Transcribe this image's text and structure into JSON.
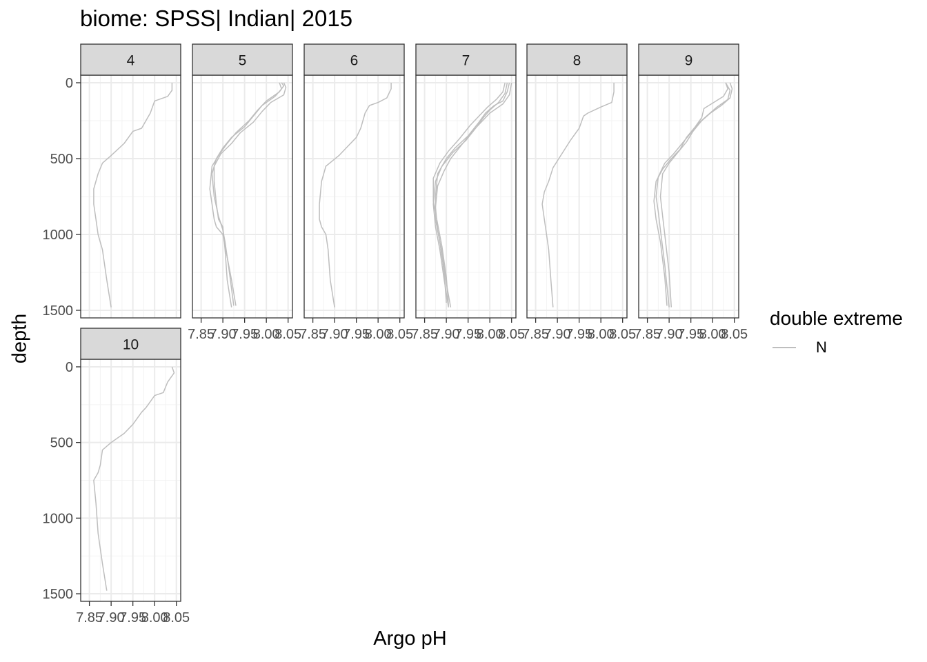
{
  "chart_data": {
    "type": "line",
    "title": "biome: SPSS| Indian| 2015",
    "xlabel": "Argo pH",
    "ylabel": "depth",
    "facet_var": "month",
    "xlim": [
      7.83,
      8.06
    ],
    "ylim": [
      1550,
      -50
    ],
    "y_reversed": true,
    "x_ticks": [
      7.85,
      7.9,
      7.95,
      8.0,
      8.05
    ],
    "x_tick_labels": [
      "7.85",
      "7.90",
      "7.95",
      "8.00",
      "8.05"
    ],
    "y_ticks": [
      0,
      500,
      1000,
      1500
    ],
    "y_tick_labels": [
      "0",
      "500",
      "1000",
      "1500"
    ],
    "grid": true,
    "legend": {
      "title": "double extreme",
      "position": "right",
      "entries": [
        {
          "label": "N",
          "color": "#bebebe"
        }
      ]
    },
    "facets": [
      {
        "label": "4",
        "series": [
          {
            "x": [
              8.04,
              8.04,
              8.035,
              8.03,
              8.0,
              7.99,
              7.98,
              7.97,
              7.95,
              7.93,
              7.9,
              7.88,
              7.87,
              7.86,
              7.86,
              7.865,
              7.87,
              7.88,
              7.89,
              7.9
            ],
            "y": [
              0,
              50,
              70,
              90,
              120,
              200,
              250,
              300,
              320,
              400,
              480,
              530,
              600,
              700,
              800,
              900,
              1000,
              1100,
              1300,
              1480
            ]
          }
        ]
      },
      {
        "label": "5",
        "series": [
          {
            "x": [
              8.035,
              8.04,
              8.03,
              8.0,
              7.98,
              7.96,
              7.93,
              7.91,
              7.89,
              7.875,
              7.87,
              7.875,
              7.88,
              7.885,
              7.9,
              7.91,
              7.92,
              7.93
            ],
            "y": [
              0,
              20,
              60,
              120,
              180,
              250,
              330,
              400,
              480,
              550,
              700,
              800,
              900,
              950,
              1000,
              1150,
              1300,
              1470
            ]
          },
          {
            "x": [
              8.04,
              8.045,
              8.04,
              8.01,
              7.99,
              7.97,
              7.94,
              7.92,
              7.895,
              7.88,
              7.88,
              7.885,
              7.89,
              7.9,
              7.905,
              7.91,
              7.92
            ],
            "y": [
              0,
              30,
              80,
              130,
              190,
              260,
              330,
              400,
              470,
              550,
              650,
              800,
              900,
              950,
              1100,
              1300,
              1480
            ]
          },
          {
            "x": [
              8.03,
              8.035,
              8.02,
              7.99,
              7.97,
              7.95,
              7.92,
              7.9,
              7.885,
              7.875,
              7.88,
              7.89,
              7.9,
              7.905,
              7.915,
              7.925
            ],
            "y": [
              0,
              40,
              90,
              150,
              220,
              290,
              360,
              430,
              500,
              600,
              750,
              880,
              970,
              1050,
              1250,
              1470
            ]
          }
        ]
      },
      {
        "label": "6",
        "series": [
          {
            "x": [
              8.03,
              8.03,
              8.02,
              8.0,
              7.98,
              7.97,
              7.96,
              7.95,
              7.93,
              7.91,
              7.88,
              7.87,
              7.865,
              7.865,
              7.87,
              7.88,
              7.885,
              7.89,
              7.9
            ],
            "y": [
              0,
              40,
              100,
              130,
              150,
              200,
              300,
              360,
              420,
              480,
              550,
              650,
              800,
              900,
              950,
              1000,
              1100,
              1300,
              1480
            ]
          }
        ]
      },
      {
        "label": "7",
        "series": [
          {
            "x": [
              8.045,
              8.04,
              8.03,
              8.01,
              7.99,
              7.975,
              7.95,
              7.92,
              7.9,
              7.88,
              7.875,
              7.875,
              7.885,
              7.895,
              7.9
            ],
            "y": [
              0,
              60,
              120,
              150,
              200,
              260,
              350,
              430,
              500,
              600,
              750,
              900,
              1050,
              1250,
              1450
            ]
          },
          {
            "x": [
              8.04,
              8.035,
              8.02,
              8.0,
              7.985,
              7.97,
              7.945,
              7.915,
              7.89,
              7.875,
              7.87,
              7.875,
              7.885,
              7.895,
              7.905
            ],
            "y": [
              0,
              70,
              130,
              180,
              230,
              290,
              380,
              460,
              550,
              650,
              800,
              950,
              1100,
              1300,
              1480
            ]
          },
          {
            "x": [
              8.05,
              8.045,
              8.03,
              8.0,
              7.98,
              7.96,
              7.935,
              7.91,
              7.895,
              7.88,
              7.875,
              7.88,
              7.89,
              7.9,
              7.91
            ],
            "y": [
              0,
              80,
              140,
              200,
              260,
              320,
              410,
              500,
              580,
              680,
              820,
              970,
              1120,
              1320,
              1480
            ]
          },
          {
            "x": [
              8.035,
              8.03,
              8.015,
              7.995,
              7.975,
              7.955,
              7.93,
              7.905,
              7.885,
              7.87,
              7.87,
              7.88,
              7.89,
              7.9,
              7.905
            ],
            "y": [
              0,
              60,
              110,
              160,
              220,
              280,
              370,
              450,
              530,
              630,
              780,
              930,
              1080,
              1280,
              1470
            ]
          }
        ]
      },
      {
        "label": "8",
        "series": [
          {
            "x": [
              8.03,
              8.03,
              8.025,
              8.0,
              7.97,
              7.96,
              7.95,
              7.93,
              7.91,
              7.89,
              7.88,
              7.87,
              7.865,
              7.87,
              7.875,
              7.88,
              7.885,
              7.89
            ],
            "y": [
              0,
              60,
              130,
              160,
              200,
              220,
              300,
              380,
              470,
              560,
              650,
              720,
              800,
              900,
              1000,
              1100,
              1300,
              1480
            ]
          }
        ]
      },
      {
        "label": "9",
        "series": [
          {
            "x": [
              8.03,
              8.04,
              8.035,
              8.01,
              7.99,
              7.97,
              7.95,
              7.93,
              7.91,
              7.89,
              7.875,
              7.87,
              7.875,
              7.88,
              7.89,
              7.9
            ],
            "y": [
              0,
              50,
              110,
              160,
              210,
              260,
              330,
              400,
              470,
              530,
              620,
              750,
              850,
              970,
              1200,
              1480
            ]
          },
          {
            "x": [
              8.04,
              8.045,
              8.04,
              8.02,
              7.995,
              7.975,
              7.955,
              7.94,
              7.92,
              7.9,
              7.885,
              7.88,
              7.885,
              7.89,
              7.9,
              7.905
            ],
            "y": [
              0,
              40,
              100,
              150,
              200,
              250,
              320,
              390,
              460,
              530,
              600,
              750,
              880,
              1000,
              1250,
              1480
            ]
          },
          {
            "x": [
              8.03,
              8.035,
              8.025,
              7.98,
              7.975,
              7.96,
              7.94,
              7.925,
              7.905,
              7.885,
              7.87,
              7.865,
              7.87,
              7.88,
              7.89,
              7.895
            ],
            "y": [
              0,
              40,
              90,
              170,
              230,
              290,
              360,
              440,
              500,
              570,
              650,
              780,
              900,
              1050,
              1280,
              1470
            ]
          }
        ]
      },
      {
        "label": "10",
        "series": [
          {
            "x": [
              8.04,
              8.045,
              8.03,
              8.02,
              8.0,
              7.99,
              7.98,
              7.97,
              7.95,
              7.93,
              7.9,
              7.88,
              7.875,
              7.87,
              7.86,
              7.865,
              7.87,
              7.88,
              7.89
            ],
            "y": [
              0,
              40,
              100,
              170,
              190,
              230,
              270,
              300,
              380,
              440,
              500,
              550,
              650,
              700,
              750,
              900,
              1100,
              1300,
              1480
            ]
          }
        ]
      }
    ]
  }
}
